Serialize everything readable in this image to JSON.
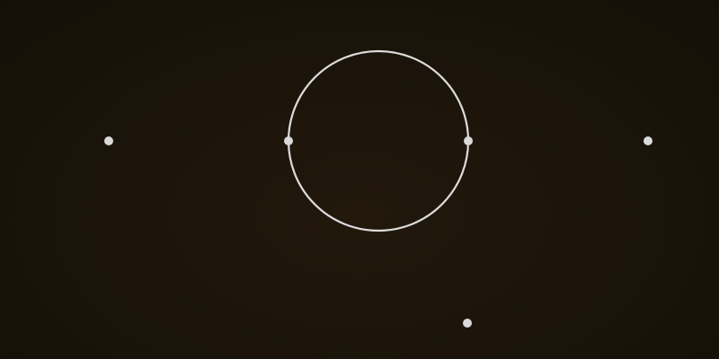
{
  "colors": {
    "background": "#1b140a",
    "ring_stroke": "#dcdcdc",
    "dot_fill": "#d9d9d9"
  },
  "scene": {
    "ring": {
      "name": "center-ring"
    },
    "dots": [
      {
        "name": "left-dot"
      },
      {
        "name": "ring-left-dot"
      },
      {
        "name": "ring-right-dot"
      },
      {
        "name": "right-dot"
      },
      {
        "name": "bottom-dot"
      }
    ]
  }
}
